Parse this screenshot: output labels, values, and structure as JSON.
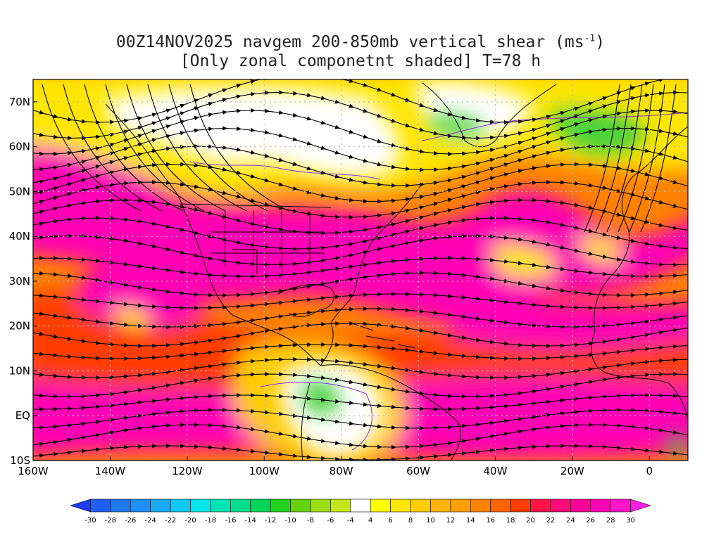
{
  "title": {
    "line1_prefix": "00Z14NOV2025 navgem 200-850mb vertical shear (ms",
    "line1_sup": "-1",
    "line1_suffix": ")",
    "line2": "[Only zonal componetnt shaded] T=78 h"
  },
  "axes": {
    "lat_labels": [
      "70N",
      "60N",
      "50N",
      "40N",
      "30N",
      "20N",
      "10N",
      "EQ",
      "10S"
    ],
    "lat_values": [
      70,
      60,
      50,
      40,
      30,
      20,
      10,
      0,
      -10
    ],
    "lon_labels": [
      "160W",
      "140W",
      "120W",
      "100W",
      "80W",
      "60W",
      "40W",
      "20W",
      "0"
    ],
    "lon_values": [
      -160,
      -140,
      -120,
      -100,
      -80,
      -60,
      -40,
      -20,
      0
    ],
    "lon_range": [
      -160,
      10
    ],
    "lat_range": [
      -10,
      75
    ],
    "grid": "dotted"
  },
  "colorbar": {
    "labels": [
      "-30",
      "-28",
      "-26",
      "-24",
      "-22",
      "-20",
      "-18",
      "-16",
      "-14",
      "-12",
      "-10",
      "-8",
      "-6",
      "-4",
      "4",
      "6",
      "8",
      "10",
      "12",
      "14",
      "16",
      "18",
      "20",
      "22",
      "24",
      "26",
      "28",
      "30"
    ],
    "colors": [
      "#1e3cff",
      "#1f5ff5",
      "#1f78ee",
      "#1e8ff5",
      "#1aaaf2",
      "#10c8f0",
      "#00e6ea",
      "#00e3b5",
      "#00dd8a",
      "#00d45a",
      "#23d21c",
      "#66d20d",
      "#9cdc15",
      "#c3e619",
      "#ffffff",
      "#ffff00",
      "#ffe600",
      "#ffcc00",
      "#ffb400",
      "#ffa000",
      "#ff8200",
      "#ff6400",
      "#ff3c00",
      "#ff1446",
      "#ff0a78",
      "#ff0096",
      "#ff00b4",
      "#ff14c8",
      "#ff1ee6"
    ]
  },
  "shading_colors": {
    "white": "#ffffff",
    "yellow": "#ffff00",
    "gold": "#ffcc00",
    "orange": "#ff8200",
    "red": "#ff3c00",
    "magenta": "#ff00b4",
    "green": "#4ad23c"
  }
}
